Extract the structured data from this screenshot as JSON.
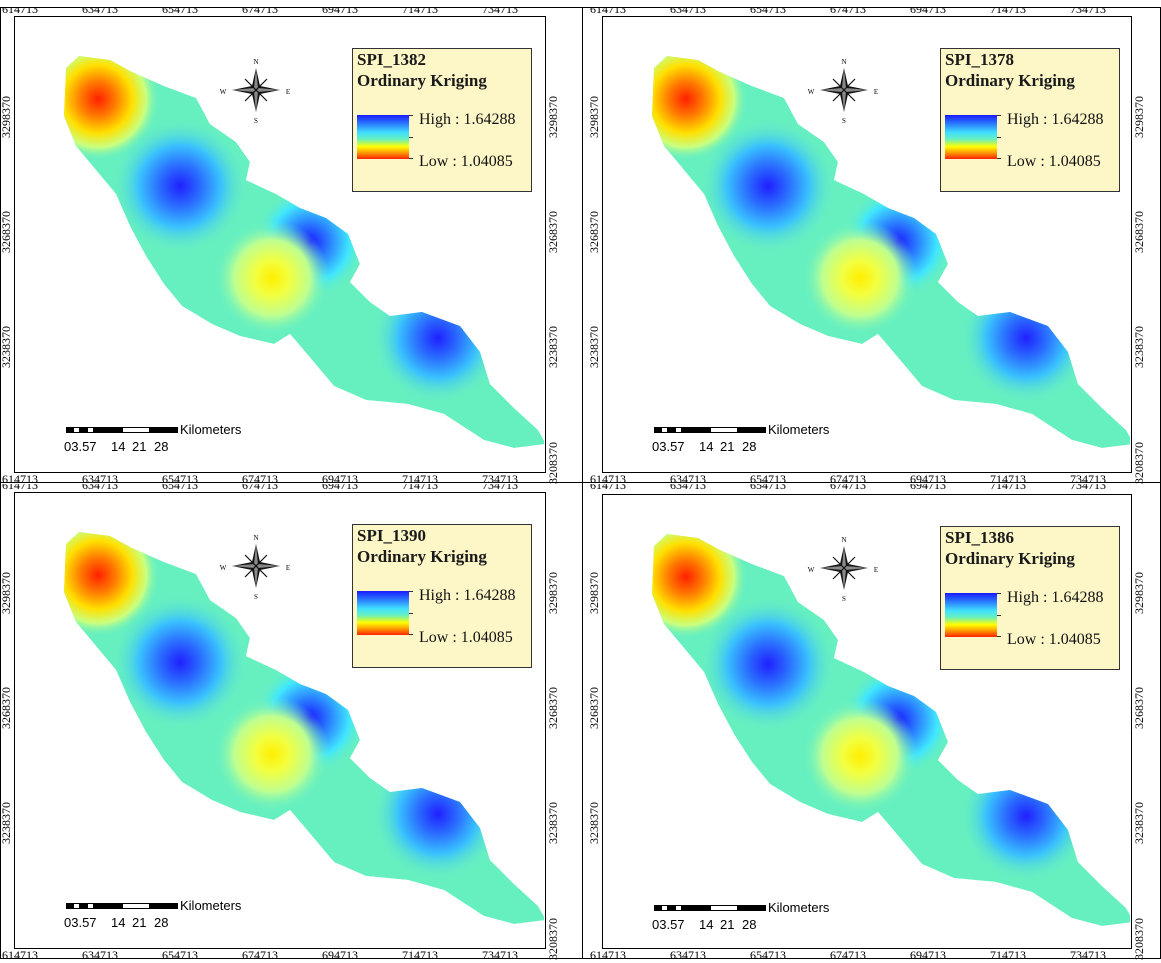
{
  "x_ticks": [
    "614713",
    "634713",
    "654713",
    "674713",
    "694713",
    "714713",
    "734713"
  ],
  "y_ticks": [
    "3298370",
    "3268370",
    "3238370",
    "3208370"
  ],
  "compass": {
    "n": "N",
    "s": "S",
    "e": "E",
    "w": "W"
  },
  "scale": {
    "unit": "Kilometers",
    "labels": [
      "03.57",
      "14",
      "21",
      "28"
    ]
  },
  "legend_colors": {
    "high": "#1a1aff",
    "mid": "#66f0c0",
    "low": "#ff2200",
    "background": "#fdf7c8"
  },
  "panels": [
    {
      "title": "SPI_1382",
      "method": "Ordinary Kriging",
      "high": "High : 1.64288",
      "low": "Low : 1.04085"
    },
    {
      "title": "SPI_1378",
      "method": "Ordinary Kriging",
      "high": "High : 1.64288",
      "low": "Low : 1.04085"
    },
    {
      "title": "SPI_1390",
      "method": "Ordinary Kriging",
      "high": "High : 1.64288",
      "low": "Low : 1.04085"
    },
    {
      "title": "SPI_1386",
      "method": "Ordinary Kriging",
      "high": "High : 1.64288",
      "low": "Low : 1.04085"
    }
  ]
}
